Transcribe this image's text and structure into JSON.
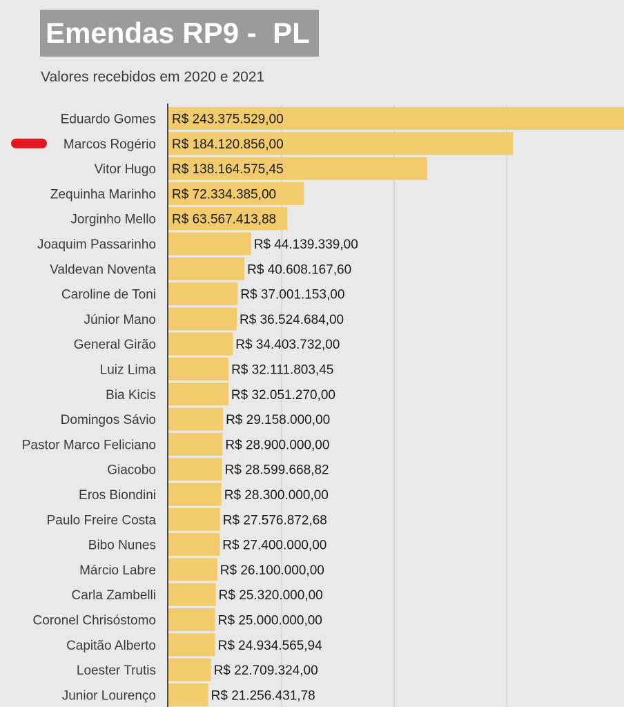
{
  "chart_data": {
    "type": "bar",
    "orientation": "horizontal",
    "title": "Emendas RP9 -  PL",
    "subtitle": "Valores recebidos em 2020 e 2021",
    "bar_color": "#f2cc6c",
    "highlight_marker_color": "#e3161e",
    "highlighted_category": "Marcos Rogério",
    "grid": true,
    "xlim": [
      0,
      243375529
    ],
    "categories": [
      "Eduardo Gomes",
      "Marcos Rogério",
      "Vitor Hugo",
      "Zequinha Marinho",
      "Jorginho Mello",
      "Joaquim Passarinho",
      "Valdevan Noventa",
      "Caroline de Toni",
      "Júnior Mano",
      "General Girão",
      "Luiz Lima",
      "Bia Kicis",
      "Domingos Sávio",
      "Pastor Marco Feliciano",
      "Giacobo",
      "Eros Biondini",
      "Paulo Freire Costa",
      "Bibo Nunes",
      "Márcio Labre",
      "Carla Zambelli",
      "Coronel Chrisóstomo",
      "Capitão Alberto",
      "Loester Trutis",
      "Junior Lourenço"
    ],
    "values": [
      243375529.0,
      184120856.0,
      138164575.45,
      72334385.0,
      63567413.88,
      44139339.0,
      40608167.6,
      37001153.0,
      36524684.0,
      34403732.0,
      32111803.45,
      32051270.0,
      29158000.0,
      28900000.0,
      28599668.82,
      28300000.0,
      27576872.68,
      27400000.0,
      26100000.0,
      25320000.0,
      25000000.0,
      24934565.94,
      22709324.0,
      21256431.78
    ],
    "value_labels": [
      "R$ 243.375.529,00",
      "R$ 184.120.856,00",
      "R$ 138.164.575,45",
      "R$ 72.334.385,00",
      "R$ 63.567.413,88",
      "R$ 44.139.339,00",
      "R$ 40.608.167,60",
      "R$ 37.001.153,00",
      "R$ 36.524.684,00",
      "R$ 34.403.732,00",
      "R$ 32.111.803,45",
      "R$ 32.051.270,00",
      "R$ 29.158.000,00",
      "R$ 28.900.000,00",
      "R$ 28.599.668,82",
      "R$ 28.300.000,00",
      "R$ 27.576.872,68",
      "R$ 27.400.000,00",
      "R$ 26.100.000,00",
      "R$ 25.320.000,00",
      "R$ 25.000.000,00",
      "R$ 24.934.565,94",
      "R$ 22.709.324,00",
      "R$ 21.256.431,78"
    ]
  }
}
